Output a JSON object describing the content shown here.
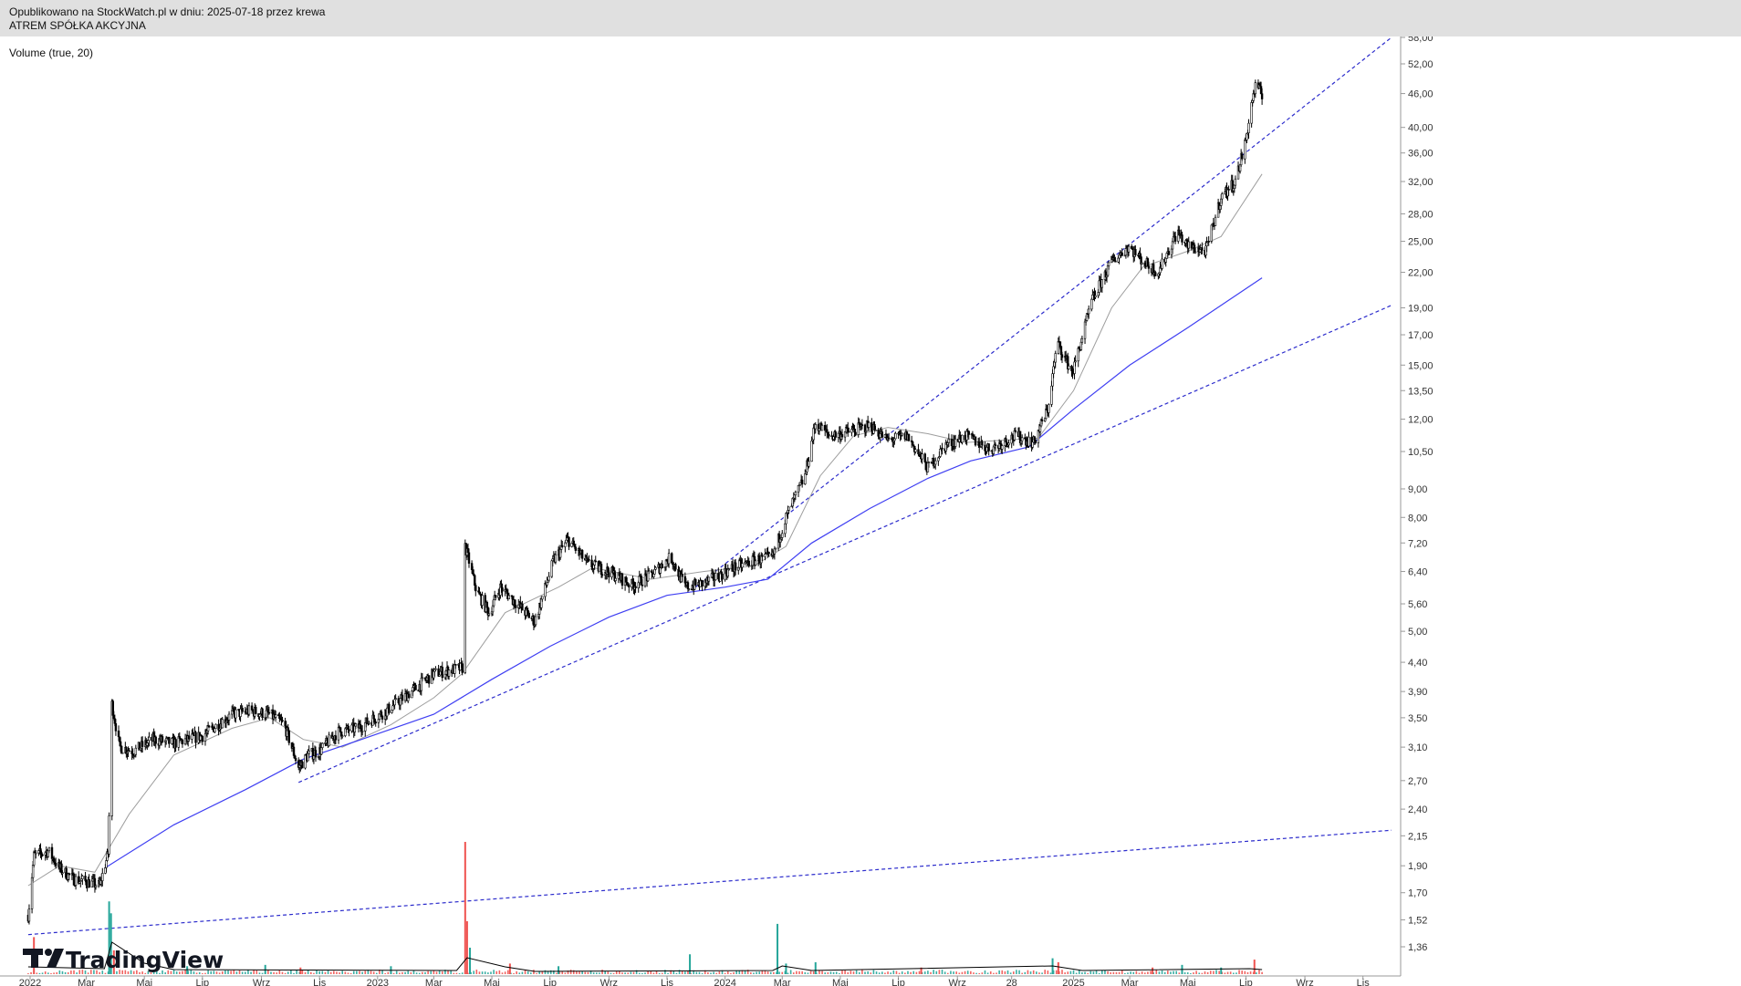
{
  "header": {
    "published": "Opublikowano na StockWatch.pl w dniu: 2025-07-18 przez krewa",
    "symbol": "ATREM SPÓŁKA AKCYJNA"
  },
  "indicator_label": "Volume (true, 20)",
  "logo_text": "TradingView",
  "colors": {
    "candle": "#000000",
    "vol_up": "#26a69a",
    "vol_down": "#ef5350",
    "ma_short": "#9e9e9e",
    "ma_long": "#3f3ff2",
    "trend": "#2c2ccc",
    "vol_ma": "#000000"
  },
  "chart_data": {
    "type": "candlestick",
    "log_scale": true,
    "x_axis_labels": [
      "2022",
      "Mar",
      "Maj",
      "Lip",
      "Wrz",
      "Lis",
      "2023",
      "Mar",
      "Maj",
      "Lip",
      "Wrz",
      "Lis",
      "2024",
      "Mar",
      "Maj",
      "Lip",
      "Wrz",
      "28",
      "2025",
      "Mar",
      "Maj",
      "Lip",
      "Wrz",
      "Lis"
    ],
    "y_axis_labels": [
      "58,00",
      "52,00",
      "46,00",
      "40,00",
      "36,00",
      "32,00",
      "28,00",
      "25,00",
      "22,00",
      "19,00",
      "17,00",
      "15,00",
      "13,50",
      "12,00",
      "10,50",
      "9,00",
      "8,00",
      "7,20",
      "6,40",
      "5,60",
      "5,00",
      "4,40",
      "3,90",
      "3,50",
      "3,10",
      "2,70",
      "2,40",
      "2,15",
      "1,90",
      "1,70",
      "1,52",
      "1,36"
    ],
    "y_range": [
      1.3,
      60.0
    ],
    "x_range": [
      "2022-01-01",
      "2025-12-01"
    ],
    "price_path": [
      [
        "2021-12-30",
        1.55
      ],
      [
        "2022-01-05",
        1.98
      ],
      [
        "2022-01-20",
        2.02
      ],
      [
        "2022-02-01",
        1.88
      ],
      [
        "2022-02-15",
        1.8
      ],
      [
        "2022-03-01",
        1.78
      ],
      [
        "2022-03-15",
        1.75
      ],
      [
        "2022-03-24",
        2.0
      ],
      [
        "2022-03-28",
        3.7
      ],
      [
        "2022-04-05",
        3.1
      ],
      [
        "2022-04-20",
        3.05
      ],
      [
        "2022-05-10",
        3.2
      ],
      [
        "2022-06-01",
        3.15
      ],
      [
        "2022-07-01",
        3.25
      ],
      [
        "2022-08-01",
        3.55
      ],
      [
        "2022-08-20",
        3.6
      ],
      [
        "2022-09-10",
        3.55
      ],
      [
        "2022-09-25",
        3.4
      ],
      [
        "2022-10-10",
        2.85
      ],
      [
        "2022-10-20",
        3.0
      ],
      [
        "2022-11-01",
        3.05
      ],
      [
        "2022-11-20",
        3.3
      ],
      [
        "2022-12-10",
        3.35
      ],
      [
        "2023-01-10",
        3.6
      ],
      [
        "2023-02-10",
        3.95
      ],
      [
        "2023-03-01",
        4.2
      ],
      [
        "2023-03-31",
        4.3
      ],
      [
        "2023-04-03",
        7.1
      ],
      [
        "2023-04-15",
        5.9
      ],
      [
        "2023-04-28",
        5.4
      ],
      [
        "2023-05-10",
        6.0
      ],
      [
        "2023-06-01",
        5.5
      ],
      [
        "2023-06-15",
        5.2
      ],
      [
        "2023-07-05",
        6.7
      ],
      [
        "2023-07-20",
        7.3
      ],
      [
        "2023-08-10",
        6.6
      ],
      [
        "2023-09-01",
        6.4
      ],
      [
        "2023-09-25",
        6.05
      ],
      [
        "2023-10-15",
        6.3
      ],
      [
        "2023-11-05",
        6.8
      ],
      [
        "2023-11-20",
        6.0
      ],
      [
        "2023-12-10",
        6.1
      ],
      [
        "2024-01-10",
        6.5
      ],
      [
        "2024-02-01",
        6.7
      ],
      [
        "2024-02-20",
        6.8
      ],
      [
        "2024-03-05",
        8.0
      ],
      [
        "2024-03-25",
        9.5
      ],
      [
        "2024-04-05",
        11.8
      ],
      [
        "2024-04-20",
        11.2
      ],
      [
        "2024-05-10",
        11.4
      ],
      [
        "2024-06-01",
        11.7
      ],
      [
        "2024-06-20",
        11.0
      ],
      [
        "2024-07-10",
        11.2
      ],
      [
        "2024-08-01",
        9.8
      ],
      [
        "2024-08-20",
        10.8
      ],
      [
        "2024-09-10",
        11.2
      ],
      [
        "2024-10-05",
        10.6
      ],
      [
        "2024-11-01",
        11.2
      ],
      [
        "2024-11-20",
        10.9
      ],
      [
        "2024-12-05",
        12.5
      ],
      [
        "2024-12-15",
        16.5
      ],
      [
        "2024-12-31",
        14.5
      ],
      [
        "2025-01-20",
        19.5
      ],
      [
        "2025-02-10",
        23.0
      ],
      [
        "2025-02-28",
        24.5
      ],
      [
        "2025-03-15",
        23.0
      ],
      [
        "2025-03-31",
        22.0
      ],
      [
        "2025-04-20",
        26.0
      ],
      [
        "2025-05-01",
        24.5
      ],
      [
        "2025-05-20",
        24.0
      ],
      [
        "2025-06-05",
        30.0
      ],
      [
        "2025-06-20",
        32.0
      ],
      [
        "2025-07-01",
        38.0
      ],
      [
        "2025-07-08",
        45.0
      ],
      [
        "2025-07-12",
        48.0
      ],
      [
        "2025-07-18",
        45.5
      ]
    ],
    "moving_averages": [
      {
        "name": "MA short",
        "points": [
          [
            "2021-12-30",
            1.75
          ],
          [
            "2022-02-01",
            1.9
          ],
          [
            "2022-03-10",
            1.85
          ],
          [
            "2022-04-15",
            2.35
          ],
          [
            "2022-06-01",
            3.0
          ],
          [
            "2022-08-01",
            3.35
          ],
          [
            "2022-09-10",
            3.5
          ],
          [
            "2022-10-15",
            3.2
          ],
          [
            "2022-11-25",
            3.1
          ],
          [
            "2023-01-15",
            3.4
          ],
          [
            "2023-03-01",
            3.8
          ],
          [
            "2023-03-31",
            4.2
          ],
          [
            "2023-05-15",
            5.4
          ],
          [
            "2023-07-10",
            6.0
          ],
          [
            "2023-08-15",
            6.5
          ],
          [
            "2023-10-15",
            6.2
          ],
          [
            "2023-12-10",
            6.4
          ],
          [
            "2024-01-31",
            6.55
          ],
          [
            "2024-03-05",
            7.1
          ],
          [
            "2024-04-10",
            9.5
          ],
          [
            "2024-05-15",
            11.2
          ],
          [
            "2024-06-20",
            11.6
          ],
          [
            "2024-08-01",
            11.3
          ],
          [
            "2024-09-10",
            10.9
          ],
          [
            "2024-11-25",
            11.1
          ],
          [
            "2025-01-01",
            13.5
          ],
          [
            "2025-02-10",
            19.0
          ],
          [
            "2025-03-15",
            22.5
          ],
          [
            "2025-05-01",
            24.0
          ],
          [
            "2025-06-05",
            25.5
          ],
          [
            "2025-07-18",
            33.0
          ]
        ]
      },
      {
        "name": "MA long",
        "points": [
          [
            "2022-03-20",
            1.88
          ],
          [
            "2022-06-01",
            2.25
          ],
          [
            "2022-08-15",
            2.6
          ],
          [
            "2022-10-15",
            2.95
          ],
          [
            "2022-12-15",
            3.2
          ],
          [
            "2023-03-01",
            3.55
          ],
          [
            "2023-05-01",
            4.1
          ],
          [
            "2023-07-01",
            4.7
          ],
          [
            "2023-09-01",
            5.3
          ],
          [
            "2023-11-01",
            5.8
          ],
          [
            "2024-01-01",
            6.0
          ],
          [
            "2024-02-15",
            6.2
          ],
          [
            "2024-04-01",
            7.2
          ],
          [
            "2024-06-01",
            8.3
          ],
          [
            "2024-08-01",
            9.4
          ],
          [
            "2024-09-15",
            10.1
          ],
          [
            "2024-11-15",
            10.7
          ],
          [
            "2025-01-01",
            12.5
          ],
          [
            "2025-03-01",
            15.0
          ],
          [
            "2025-05-01",
            17.5
          ],
          [
            "2025-07-18",
            21.5
          ]
        ]
      }
    ],
    "trend_lines": [
      {
        "from": [
          "2021-12-30",
          1.43
        ],
        "to": [
          "2025-12-01",
          2.2
        ]
      },
      {
        "from": [
          "2022-10-10",
          2.68
        ],
        "to": [
          "2025-12-01",
          19.2
        ]
      },
      {
        "from": [
          "2023-12-01",
          6.0
        ],
        "to": [
          "2025-12-01",
          58.0
        ]
      }
    ],
    "volume": {
      "max_relative": 1.0,
      "spikes": [
        [
          "2022-01-05",
          0.28,
          "down"
        ],
        [
          "2022-03-25",
          0.55,
          "up"
        ],
        [
          "2022-03-27",
          0.46,
          "up"
        ],
        [
          "2022-03-30",
          0.18,
          "down"
        ],
        [
          "2022-06-15",
          0.06,
          "up"
        ],
        [
          "2022-09-05",
          0.07,
          "up"
        ],
        [
          "2022-10-12",
          0.05,
          "down"
        ],
        [
          "2023-01-15",
          0.06,
          "up"
        ],
        [
          "2023-04-03",
          1.0,
          "down"
        ],
        [
          "2023-04-05",
          0.4,
          "down"
        ],
        [
          "2023-04-08",
          0.2,
          "up"
        ],
        [
          "2023-05-20",
          0.08,
          "down"
        ],
        [
          "2023-07-10",
          0.06,
          "up"
        ],
        [
          "2023-11-25",
          0.15,
          "up"
        ],
        [
          "2024-02-25",
          0.38,
          "up"
        ],
        [
          "2024-03-05",
          0.08,
          "up"
        ],
        [
          "2024-04-05",
          0.09,
          "up"
        ],
        [
          "2024-07-25",
          0.05,
          "down"
        ],
        [
          "2024-12-10",
          0.12,
          "up"
        ],
        [
          "2024-12-16",
          0.09,
          "down"
        ],
        [
          "2025-03-25",
          0.05,
          "down"
        ],
        [
          "2025-04-25",
          0.07,
          "up"
        ],
        [
          "2025-06-05",
          0.05,
          "up"
        ],
        [
          "2025-07-10",
          0.11,
          "down"
        ]
      ]
    }
  }
}
